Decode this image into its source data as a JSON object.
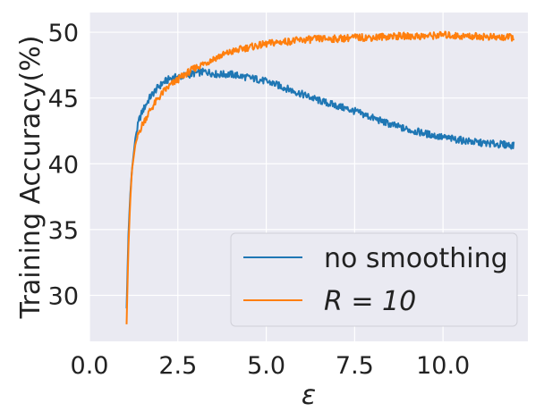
{
  "chart_data": {
    "type": "line",
    "xlabel": "ε",
    "ylabel": "Training Accuracy(%)",
    "xlim": [
      0,
      12.4
    ],
    "ylim": [
      26.5,
      51.5
    ],
    "xticks": [
      0.0,
      2.5,
      5.0,
      7.5,
      10.0
    ],
    "xtick_labels": [
      "0.0",
      "2.5",
      "5.0",
      "7.5",
      "10.0"
    ],
    "yticks": [
      30,
      35,
      40,
      45,
      50
    ],
    "ytick_labels": [
      "30",
      "35",
      "40",
      "45",
      "50"
    ],
    "grid": true,
    "legend_position": "bottom-right",
    "series": [
      {
        "name": "no smoothing",
        "legend_label": "no smoothing",
        "color": "#1f77b4",
        "x": [
          1.05,
          1.1,
          1.15,
          1.2,
          1.3,
          1.4,
          1.5,
          1.7,
          1.9,
          2.1,
          2.3,
          2.5,
          2.7,
          3.0,
          3.3,
          3.6,
          4.0,
          4.4,
          4.8,
          5.2,
          5.6,
          6.0,
          6.5,
          7.0,
          7.5,
          8.0,
          8.5,
          9.0,
          9.5,
          10.0,
          10.5,
          11.0,
          11.5,
          12.0
        ],
        "y": [
          29.0,
          34.5,
          37.5,
          39.5,
          42.0,
          43.3,
          44.0,
          45.0,
          45.7,
          46.2,
          46.5,
          46.6,
          46.7,
          46.9,
          47.0,
          46.8,
          46.8,
          46.6,
          46.4,
          46.1,
          45.7,
          45.3,
          44.8,
          44.4,
          44.0,
          43.5,
          43.0,
          42.6,
          42.3,
          42.0,
          41.8,
          41.6,
          41.5,
          41.4
        ]
      },
      {
        "name": "R=10",
        "legend_label": "R = 10",
        "color": "#ff7f0e",
        "x": [
          1.05,
          1.1,
          1.15,
          1.2,
          1.3,
          1.4,
          1.5,
          1.7,
          1.9,
          2.1,
          2.3,
          2.5,
          2.7,
          3.0,
          3.3,
          3.6,
          4.0,
          4.4,
          4.8,
          5.2,
          5.6,
          6.0,
          6.5,
          7.0,
          7.5,
          8.0,
          8.5,
          9.0,
          9.5,
          10.0,
          10.5,
          11.0,
          11.5,
          12.0
        ],
        "y": [
          27.8,
          33.5,
          37.0,
          39.5,
          41.5,
          42.4,
          43.0,
          44.0,
          44.8,
          45.5,
          46.0,
          46.4,
          46.8,
          47.3,
          47.7,
          48.1,
          48.5,
          48.8,
          49.0,
          49.2,
          49.3,
          49.4,
          49.5,
          49.5,
          49.6,
          49.6,
          49.7,
          49.7,
          49.7,
          49.8,
          49.7,
          49.7,
          49.6,
          49.6
        ]
      }
    ]
  }
}
